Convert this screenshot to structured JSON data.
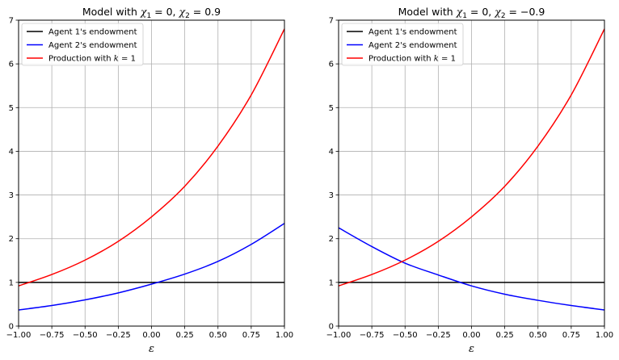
{
  "chart_data": [
    {
      "type": "line",
      "title_prefix": "Model with ",
      "title_math": [
        "χ",
        "1",
        " = 0, ",
        "χ",
        "2",
        " = 0.9"
      ],
      "xlabel": "ε",
      "ylabel": "",
      "xlim": [
        -1.0,
        1.0
      ],
      "ylim": [
        0,
        7
      ],
      "xticks": [
        "-1.00",
        "-0.75",
        "-0.50",
        "-0.25",
        "0.00",
        "0.25",
        "0.50",
        "0.75",
        "1.00"
      ],
      "yticks": [
        "0",
        "1",
        "2",
        "3",
        "4",
        "5",
        "6",
        "7"
      ],
      "grid": true,
      "legend_position": "upper-left",
      "series": [
        {
          "name": "Agent 1's endowment",
          "color": "#000000",
          "x": [
            -1.0,
            -0.75,
            -0.5,
            -0.25,
            0.0,
            0.25,
            0.5,
            0.75,
            1.0
          ],
          "y": [
            1.0,
            1.0,
            1.0,
            1.0,
            1.0,
            1.0,
            1.0,
            1.0,
            1.0
          ]
        },
        {
          "name": "Agent 2's endowment",
          "color": "#0000ff",
          "x": [
            -1.0,
            -0.75,
            -0.5,
            -0.25,
            0.0,
            0.25,
            0.5,
            0.75,
            1.0
          ],
          "y": [
            0.37,
            0.47,
            0.6,
            0.76,
            0.96,
            1.19,
            1.48,
            1.87,
            2.35
          ]
        },
        {
          "name": "Production with ",
          "name_math": "k = 1",
          "color": "#ff0000",
          "x": [
            -1.0,
            -0.75,
            -0.5,
            -0.25,
            0.0,
            0.25,
            0.5,
            0.75,
            1.0
          ],
          "y": [
            0.92,
            1.18,
            1.51,
            1.94,
            2.5,
            3.2,
            4.12,
            5.29,
            6.8
          ]
        }
      ]
    },
    {
      "type": "line",
      "title_prefix": "Model with ",
      "title_math": [
        "χ",
        "1",
        " = 0, ",
        "χ",
        "2",
        " = −0.9"
      ],
      "xlabel": "ε",
      "ylabel": "",
      "xlim": [
        -1.0,
        1.0
      ],
      "ylim": [
        0,
        7
      ],
      "xticks": [
        "-1.00",
        "-0.75",
        "-0.50",
        "-0.25",
        "0.00",
        "0.25",
        "0.50",
        "0.75",
        "1.00"
      ],
      "yticks": [
        "0",
        "1",
        "2",
        "3",
        "4",
        "5",
        "6",
        "7"
      ],
      "grid": true,
      "legend_position": "upper-left",
      "series": [
        {
          "name": "Agent 1's endowment",
          "color": "#000000",
          "x": [
            -1.0,
            -0.75,
            -0.5,
            -0.25,
            0.0,
            0.25,
            0.5,
            0.75,
            1.0
          ],
          "y": [
            1.0,
            1.0,
            1.0,
            1.0,
            1.0,
            1.0,
            1.0,
            1.0,
            1.0
          ]
        },
        {
          "name": "Agent 2's endowment",
          "color": "#0000ff",
          "x": [
            -1.0,
            -0.75,
            -0.5,
            -0.25,
            0.0,
            0.25,
            0.5,
            0.75,
            1.0
          ],
          "y": [
            2.25,
            1.82,
            1.44,
            1.17,
            0.92,
            0.73,
            0.59,
            0.47,
            0.37
          ]
        },
        {
          "name": "Production with ",
          "name_math": "k = 1",
          "color": "#ff0000",
          "x": [
            -1.0,
            -0.75,
            -0.5,
            -0.25,
            0.0,
            0.25,
            0.5,
            0.75,
            1.0
          ],
          "y": [
            0.92,
            1.18,
            1.51,
            1.94,
            2.5,
            3.2,
            4.12,
            5.29,
            6.8
          ]
        }
      ]
    }
  ]
}
